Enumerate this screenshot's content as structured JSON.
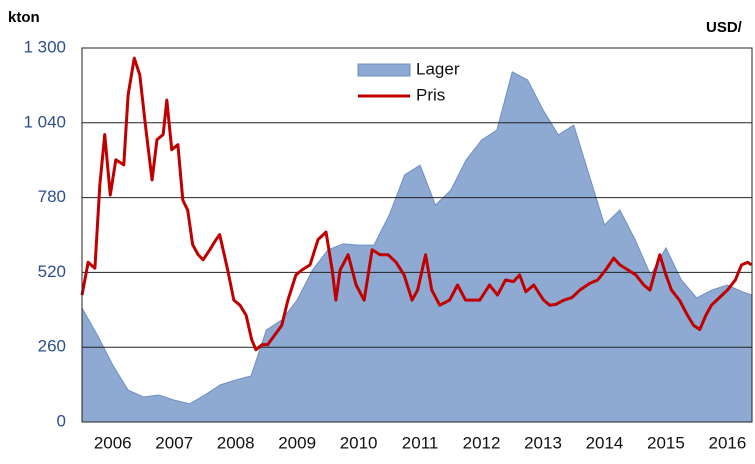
{
  "chart_data": {
    "type": "area_line",
    "ylabel": "kton",
    "y2label": "USD/",
    "xlim": [
      2006,
      2016.9
    ],
    "xticks": [
      {
        "value": 2006.5,
        "label": "2006"
      },
      {
        "value": 2007.5,
        "label": "2007"
      },
      {
        "value": 2008.5,
        "label": "2008"
      },
      {
        "value": 2009.5,
        "label": "2009"
      },
      {
        "value": 2010.5,
        "label": "2010"
      },
      {
        "value": 2011.5,
        "label": "2011"
      },
      {
        "value": 2012.5,
        "label": "2012"
      },
      {
        "value": 2013.5,
        "label": "2013"
      },
      {
        "value": 2014.5,
        "label": "2014"
      },
      {
        "value": 2015.5,
        "label": "2015"
      },
      {
        "value": 2016.5,
        "label": "2016"
      }
    ],
    "ylim": [
      0,
      1300
    ],
    "yticks": [
      0,
      260,
      520,
      780,
      {
        "value": 1040,
        "label": "1 040"
      },
      {
        "value": 1300,
        "label": "1 300"
      }
    ],
    "y2lim": [
      250,
      4700
    ],
    "grid": true,
    "legend": "top",
    "series": [
      {
        "name": "Lager",
        "kind": "area",
        "color": "#8eaad3",
        "x": [
          2006,
          2006.25,
          2006.5,
          2006.75,
          2007,
          2007.25,
          2007.5,
          2007.75,
          2008,
          2008.25,
          2008.5,
          2008.75,
          2009,
          2009.25,
          2009.5,
          2009.75,
          2010,
          2010.25,
          2010.5,
          2010.75,
          2011,
          2011.25,
          2011.5,
          2011.75,
          2012,
          2012.25,
          2012.5,
          2012.75,
          2013,
          2013.25,
          2013.5,
          2013.75,
          2014,
          2014.25,
          2014.5,
          2014.75,
          2015,
          2015.25,
          2015.5,
          2015.75,
          2016,
          2016.25,
          2016.5,
          2016.75,
          2016.9
        ],
        "values": [
          396,
          302,
          198,
          111,
          87,
          94,
          76,
          63,
          94,
          129,
          146,
          160,
          320,
          355,
          424,
          528,
          598,
          619,
          615,
          615,
          720,
          859,
          893,
          754,
          806,
          911,
          980,
          1015,
          1217,
          1189,
          1085,
          998,
          1032,
          859,
          685,
          737,
          633,
          511,
          605,
          494,
          431,
          459,
          476,
          452,
          441
        ]
      },
      {
        "name": "Pris",
        "kind": "line",
        "axis": "y2",
        "color": "#c00000",
        "x": [
          2006,
          2006.1,
          2006.21,
          2006.29,
          2006.37,
          2006.46,
          2006.55,
          2006.68,
          2006.75,
          2006.85,
          2006.94,
          2007.04,
          2007.14,
          2007.22,
          2007.32,
          2007.38,
          2007.46,
          2007.56,
          2007.64,
          2007.72,
          2007.8,
          2007.89,
          2007.97,
          2008.08,
          2008.18,
          2008.24,
          2008.37,
          2008.47,
          2008.57,
          2008.67,
          2008.76,
          2008.83,
          2008.93,
          2009.02,
          2009.14,
          2009.25,
          2009.35,
          2009.48,
          2009.58,
          2009.71,
          2009.84,
          2009.97,
          2010.07,
          2010.13,
          2010.2,
          2010.33,
          2010.46,
          2010.59,
          2010.72,
          2010.85,
          2010.98,
          2011.11,
          2011.24,
          2011.37,
          2011.46,
          2011.59,
          2011.69,
          2011.82,
          2011.98,
          2012.11,
          2012.24,
          2012.34,
          2012.47,
          2012.63,
          2012.76,
          2012.89,
          2013.02,
          2013.12,
          2013.22,
          2013.35,
          2013.51,
          2013.61,
          2013.71,
          2013.84,
          2013.97,
          2014.1,
          2014.26,
          2014.39,
          2014.52,
          2014.65,
          2014.75,
          2014.88,
          2015.01,
          2015.14,
          2015.24,
          2015.33,
          2015.4,
          2015.5,
          2015.59,
          2015.72,
          2015.85,
          2015.95,
          2016.05,
          2016.15,
          2016.24,
          2016.37,
          2016.5,
          2016.63,
          2016.73,
          2016.83,
          2016.89
        ],
        "values": [
          1760,
          2150,
          2080,
          3070,
          3670,
          2950,
          3370,
          3310,
          4140,
          4580,
          4380,
          3730,
          3130,
          3610,
          3670,
          4080,
          3490,
          3550,
          2890,
          2770,
          2360,
          2240,
          2180,
          2300,
          2420,
          2480,
          2060,
          1700,
          1640,
          1520,
          1230,
          1110,
          1170,
          1170,
          1290,
          1400,
          1700,
          2000,
          2060,
          2120,
          2420,
          2510,
          2060,
          1700,
          2060,
          2240,
          1880,
          1700,
          2300,
          2240,
          2240,
          2150,
          2000,
          1700,
          1820,
          2240,
          1820,
          1640,
          1700,
          1880,
          1700,
          1700,
          1700,
          1880,
          1760,
          1940,
          1920,
          2000,
          1800,
          1880,
          1700,
          1640,
          1650,
          1700,
          1730,
          1820,
          1900,
          1940,
          2060,
          2200,
          2120,
          2060,
          2000,
          1880,
          1820,
          2060,
          2240,
          2000,
          1820,
          1700,
          1520,
          1400,
          1350,
          1520,
          1640,
          1730,
          1820,
          1940,
          2120,
          2150,
          2120
        ]
      }
    ]
  }
}
